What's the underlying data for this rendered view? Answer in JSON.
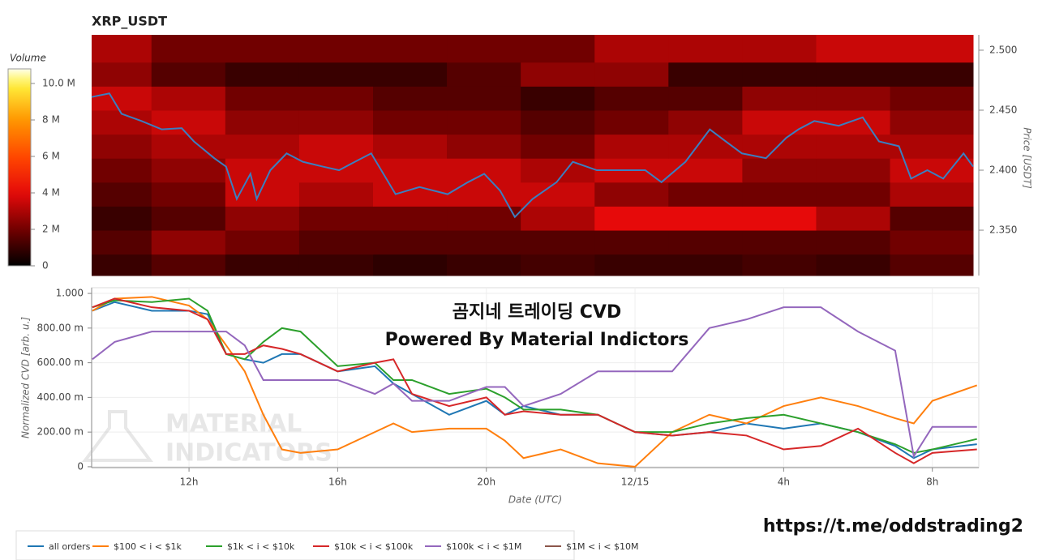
{
  "chart_data": [
    {
      "type": "heatmap",
      "title": "XRP_USDT",
      "ylabel": "Price [USDT]",
      "colorbar_label": "Volume",
      "colorbar_lim": [
        0,
        10.8
      ],
      "colorbar_ticks": [
        0,
        {
          "value": 2,
          "label": "2 M"
        },
        {
          "value": 4,
          "label": "4 M"
        },
        {
          "value": 6,
          "label": "6 M"
        },
        {
          "value": 8,
          "label": "8 M"
        },
        {
          "value": 10,
          "label": "10.0 M"
        }
      ],
      "xlim": [
        9.38,
        33.25
      ],
      "ylim": [
        2.3122,
        2.5128
      ],
      "yticks": [
        {
          "value": 2.35,
          "label": "2.350"
        },
        {
          "value": 2.4,
          "label": "2.400"
        },
        {
          "value": 2.45,
          "label": "2.450"
        },
        {
          "value": 2.5,
          "label": "2.500"
        }
      ],
      "x_edges": [
        9.38,
        11,
        13,
        15,
        17,
        19,
        21,
        23,
        25,
        27,
        29,
        31,
        33.25
      ],
      "y_edges": [
        2.3122,
        2.33,
        2.35,
        2.37,
        2.39,
        2.41,
        2.43,
        2.45,
        2.47,
        2.49,
        2.5128
      ],
      "z": [
        [
          1,
          1.5,
          1,
          1,
          0.8,
          1,
          1.2,
          1,
          1,
          1.2,
          1,
          1.5
        ],
        [
          1.5,
          2.5,
          2,
          1.5,
          1.5,
          1.5,
          1.5,
          1.5,
          1.5,
          1.5,
          1.5,
          2
        ],
        [
          1,
          1.5,
          2.5,
          2,
          2,
          2,
          3,
          4,
          4,
          4,
          3,
          1.5
        ],
        [
          1.5,
          2,
          3.5,
          3,
          3.5,
          3.5,
          3.5,
          2.5,
          2,
          2,
          2,
          3
        ],
        [
          2,
          2.5,
          3.5,
          3.5,
          3.5,
          3.5,
          3,
          3.5,
          3.5,
          2.5,
          2.5,
          3.5
        ],
        [
          2.5,
          3,
          3,
          3.5,
          3,
          2.5,
          2,
          3,
          3,
          3,
          3,
          3
        ],
        [
          3,
          3.5,
          2.5,
          2.5,
          2,
          2,
          1.5,
          2,
          2.5,
          3.5,
          3.5,
          2.5
        ],
        [
          3.5,
          3,
          2,
          2,
          1.5,
          1.5,
          1,
          1.5,
          1.5,
          2.5,
          2.5,
          2
        ],
        [
          2.5,
          1.5,
          1,
          1,
          1,
          1.5,
          2.5,
          2.5,
          1,
          1,
          1,
          1
        ],
        [
          3,
          2,
          2,
          2,
          2,
          2,
          2,
          3,
          3,
          3,
          3.5,
          3.5
        ]
      ],
      "line_color": "#3a7fc1",
      "x": [
        9.38,
        9.86,
        10.19,
        10.73,
        11.28,
        11.82,
        12.15,
        12.7,
        13.02,
        13.31,
        13.68,
        13.85,
        14.22,
        14.66,
        15.1,
        15.64,
        16.08,
        16.51,
        16.95,
        17.61,
        18.26,
        19.02,
        19.57,
        20.01,
        20.44,
        20.84,
        21.32,
        21.97,
        22.41,
        23.06,
        23.72,
        24.37,
        24.81,
        25.46,
        26.12,
        26.55,
        26.99,
        27.64,
        28.19,
        28.52,
        28.95,
        29.61,
        30.26,
        30.7,
        31.24,
        31.57,
        32.01,
        32.44,
        32.99,
        33.25
      ],
      "values": [
        2.461,
        2.464,
        2.447,
        2.441,
        2.434,
        2.435,
        2.424,
        2.41,
        2.403,
        2.376,
        2.397,
        2.376,
        2.4,
        2.414,
        2.407,
        2.403,
        2.4,
        2.407,
        2.414,
        2.38,
        2.386,
        2.38,
        2.39,
        2.397,
        2.383,
        2.361,
        2.376,
        2.39,
        2.407,
        2.4,
        2.4,
        2.4,
        2.39,
        2.407,
        2.434,
        2.424,
        2.414,
        2.41,
        2.427,
        2.434,
        2.441,
        2.437,
        2.444,
        2.424,
        2.42,
        2.393,
        2.4,
        2.393,
        2.414,
        2.403
      ]
    },
    {
      "type": "line",
      "xlabel": "Date (UTC)",
      "ylabel": "Normalized CVD [arb. u.]",
      "annotations": [
        "곰지네 트레이딩 CVD",
        "Powered By Material Indictors"
      ],
      "watermark": [
        "MATERIAL",
        "INDICATORS"
      ],
      "link": "https://t.me/oddstrading2",
      "xlim": [
        9.38,
        33.25
      ],
      "xticks": [
        {
          "value": 12,
          "label": "12h"
        },
        {
          "value": 16,
          "label": "16h"
        },
        {
          "value": 20,
          "label": "20h"
        },
        {
          "value": 24,
          "label": "12/15"
        },
        {
          "value": 28,
          "label": "4h"
        },
        {
          "value": 32,
          "label": "8h"
        }
      ],
      "ylim": [
        -0.005,
        1.033
      ],
      "yticks": [
        0,
        {
          "value": 0.2,
          "label": "200.00 m"
        },
        {
          "value": 0.4,
          "label": "400.00 m"
        },
        {
          "value": 0.6,
          "label": "600.00 m"
        },
        {
          "value": 0.8,
          "label": "800.00 m"
        },
        {
          "value": 1,
          "label": "1.000"
        }
      ],
      "x": [
        9.4,
        10,
        11,
        12,
        12.5,
        13,
        13.5,
        14,
        14.5,
        15,
        16,
        17,
        17.5,
        18,
        19,
        20,
        20.5,
        21,
        22,
        23,
        24,
        25,
        26,
        27,
        28,
        29,
        30,
        31,
        31.5,
        32,
        33.2
      ],
      "series": [
        {
          "name": "all orders",
          "color": "#1f77b4",
          "values": [
            0.9,
            0.95,
            0.9,
            0.9,
            0.88,
            0.65,
            0.62,
            0.6,
            0.65,
            0.65,
            0.55,
            0.58,
            0.48,
            0.42,
            0.3,
            0.38,
            0.3,
            0.35,
            0.3,
            0.3,
            0.2,
            0.18,
            0.2,
            0.25,
            0.22,
            0.25,
            0.2,
            0.12,
            0.05,
            0.1,
            0.13
          ]
        },
        {
          "name": "$100 < i < $1k",
          "color": "#ff7f0e",
          "values": [
            0.9,
            0.97,
            0.98,
            0.93,
            0.85,
            0.7,
            0.55,
            0.3,
            0.1,
            0.08,
            0.1,
            0.2,
            0.25,
            0.2,
            0.22,
            0.22,
            0.15,
            0.05,
            0.1,
            0.02,
            0,
            0.2,
            0.3,
            0.25,
            0.35,
            0.4,
            0.35,
            0.28,
            0.25,
            0.38,
            0.47
          ]
        },
        {
          "name": "$1k < i < $10k",
          "color": "#2ca02c",
          "values": [
            0.92,
            0.96,
            0.95,
            0.97,
            0.9,
            0.65,
            0.62,
            0.72,
            0.8,
            0.78,
            0.58,
            0.6,
            0.5,
            0.5,
            0.42,
            0.45,
            0.4,
            0.33,
            0.33,
            0.3,
            0.2,
            0.2,
            0.25,
            0.28,
            0.3,
            0.25,
            0.2,
            0.13,
            0.08,
            0.1,
            0.16
          ]
        },
        {
          "name": "$10k < i < $100k",
          "color": "#d62728",
          "values": [
            0.92,
            0.97,
            0.92,
            0.9,
            0.85,
            0.65,
            0.65,
            0.7,
            0.68,
            0.65,
            0.55,
            0.6,
            0.62,
            0.42,
            0.35,
            0.4,
            0.3,
            0.32,
            0.3,
            0.3,
            0.2,
            0.18,
            0.2,
            0.18,
            0.1,
            0.12,
            0.22,
            0.08,
            0.02,
            0.08,
            0.1
          ]
        },
        {
          "name": "$100k < i < $1M",
          "color": "#9467bd",
          "values": [
            0.62,
            0.72,
            0.78,
            0.78,
            0.78,
            0.78,
            0.7,
            0.5,
            0.5,
            0.5,
            0.5,
            0.42,
            0.48,
            0.38,
            0.38,
            0.46,
            0.46,
            0.35,
            0.42,
            0.55,
            0.55,
            0.55,
            0.8,
            0.85,
            0.92,
            0.92,
            0.78,
            0.67,
            0.06,
            0.23,
            0.23
          ]
        },
        {
          "name": "$1M < i < $10M",
          "color": "#8c564b",
          "values": [
            null,
            null,
            null,
            null,
            null,
            null,
            null,
            null,
            null,
            null,
            null,
            null,
            null,
            null,
            null,
            null,
            null,
            null,
            null,
            null,
            null,
            null,
            null,
            null,
            null,
            null,
            null,
            null,
            null,
            null,
            null
          ]
        }
      ]
    }
  ]
}
